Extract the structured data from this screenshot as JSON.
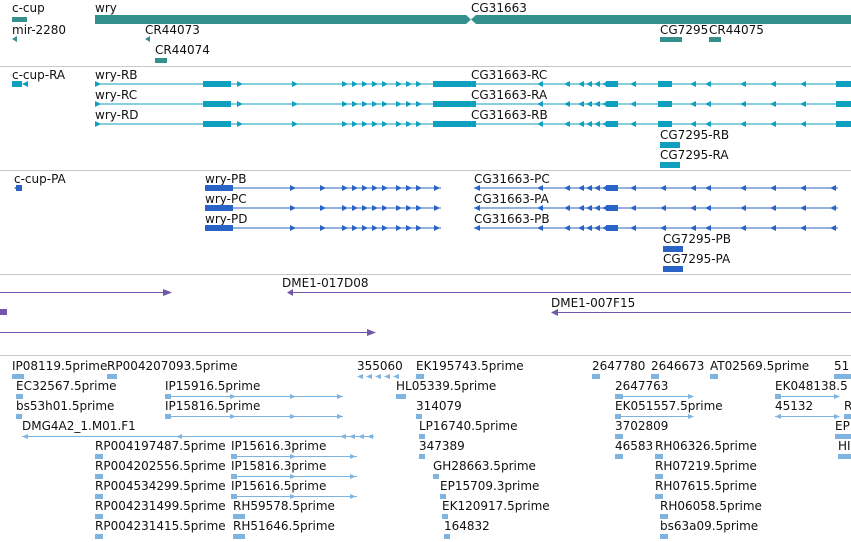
{
  "colors": {
    "gene": "#34908c",
    "transcript": "#0ea0be",
    "protein": "#2a63c6",
    "clone": "#7057a8",
    "est": "#80b4e0",
    "separator": "#c8c8c8"
  },
  "tracks": {
    "genes": {
      "labels": [
        "c-cup",
        "wry",
        "CG31663",
        "mir-2280",
        "CR44073",
        "CG7295",
        "CR44075",
        "CR44074"
      ]
    },
    "transcripts": {
      "labels": [
        "c-cup-RA",
        "wry-RB",
        "CG31663-RC",
        "wry-RC",
        "CG31663-RA",
        "wry-RD",
        "CG31663-RB",
        "CG7295-RB",
        "CG7295-RA"
      ]
    },
    "proteins": {
      "labels": [
        "c-cup-PA",
        "wry-PB",
        "CG31663-PC",
        "wry-PC",
        "CG31663-PA",
        "wry-PD",
        "CG31663-PB",
        "CG7295-PB",
        "CG7295-PA"
      ]
    },
    "clones": {
      "labels": [
        "DME1-017D08",
        "DME1-007F15"
      ]
    },
    "ests": {
      "labels": [
        "IP08119.5prime",
        "RP004207093.5prime",
        "355060",
        "EK195743.5prime",
        "2647780",
        "2646673",
        "AT02569.5prime",
        "51",
        "EC32567.5prime",
        "IP15916.5prime",
        "HL05339.5prime",
        "2647763",
        "EK048138.5",
        "bs53h01.5prime",
        "IP15816.5prime",
        "314079",
        "EK051557.5prime",
        "45132",
        "R",
        "DMG4A2_1.M01.F1",
        "LP16740.5prime",
        "3702809",
        "EP",
        "RP004197487.5prime",
        "IP15616.3prime",
        "347389",
        "46583",
        "RH06326.5prime",
        "HI",
        "RP004202556.5prime",
        "IP15816.3prime",
        "GH28663.5prime",
        "RH07219.5prime",
        "RP004534299.5prime",
        "IP15616.5prime",
        "EP15709.3prime",
        "RH07615.5prime",
        "RP004231499.5prime",
        "RH59578.5prime",
        "EK120917.5prime",
        "RH06058.5prime",
        "RP004231415.5prime",
        "RH51646.5prime",
        "164832",
        "bs63a09.5prime"
      ]
    }
  }
}
